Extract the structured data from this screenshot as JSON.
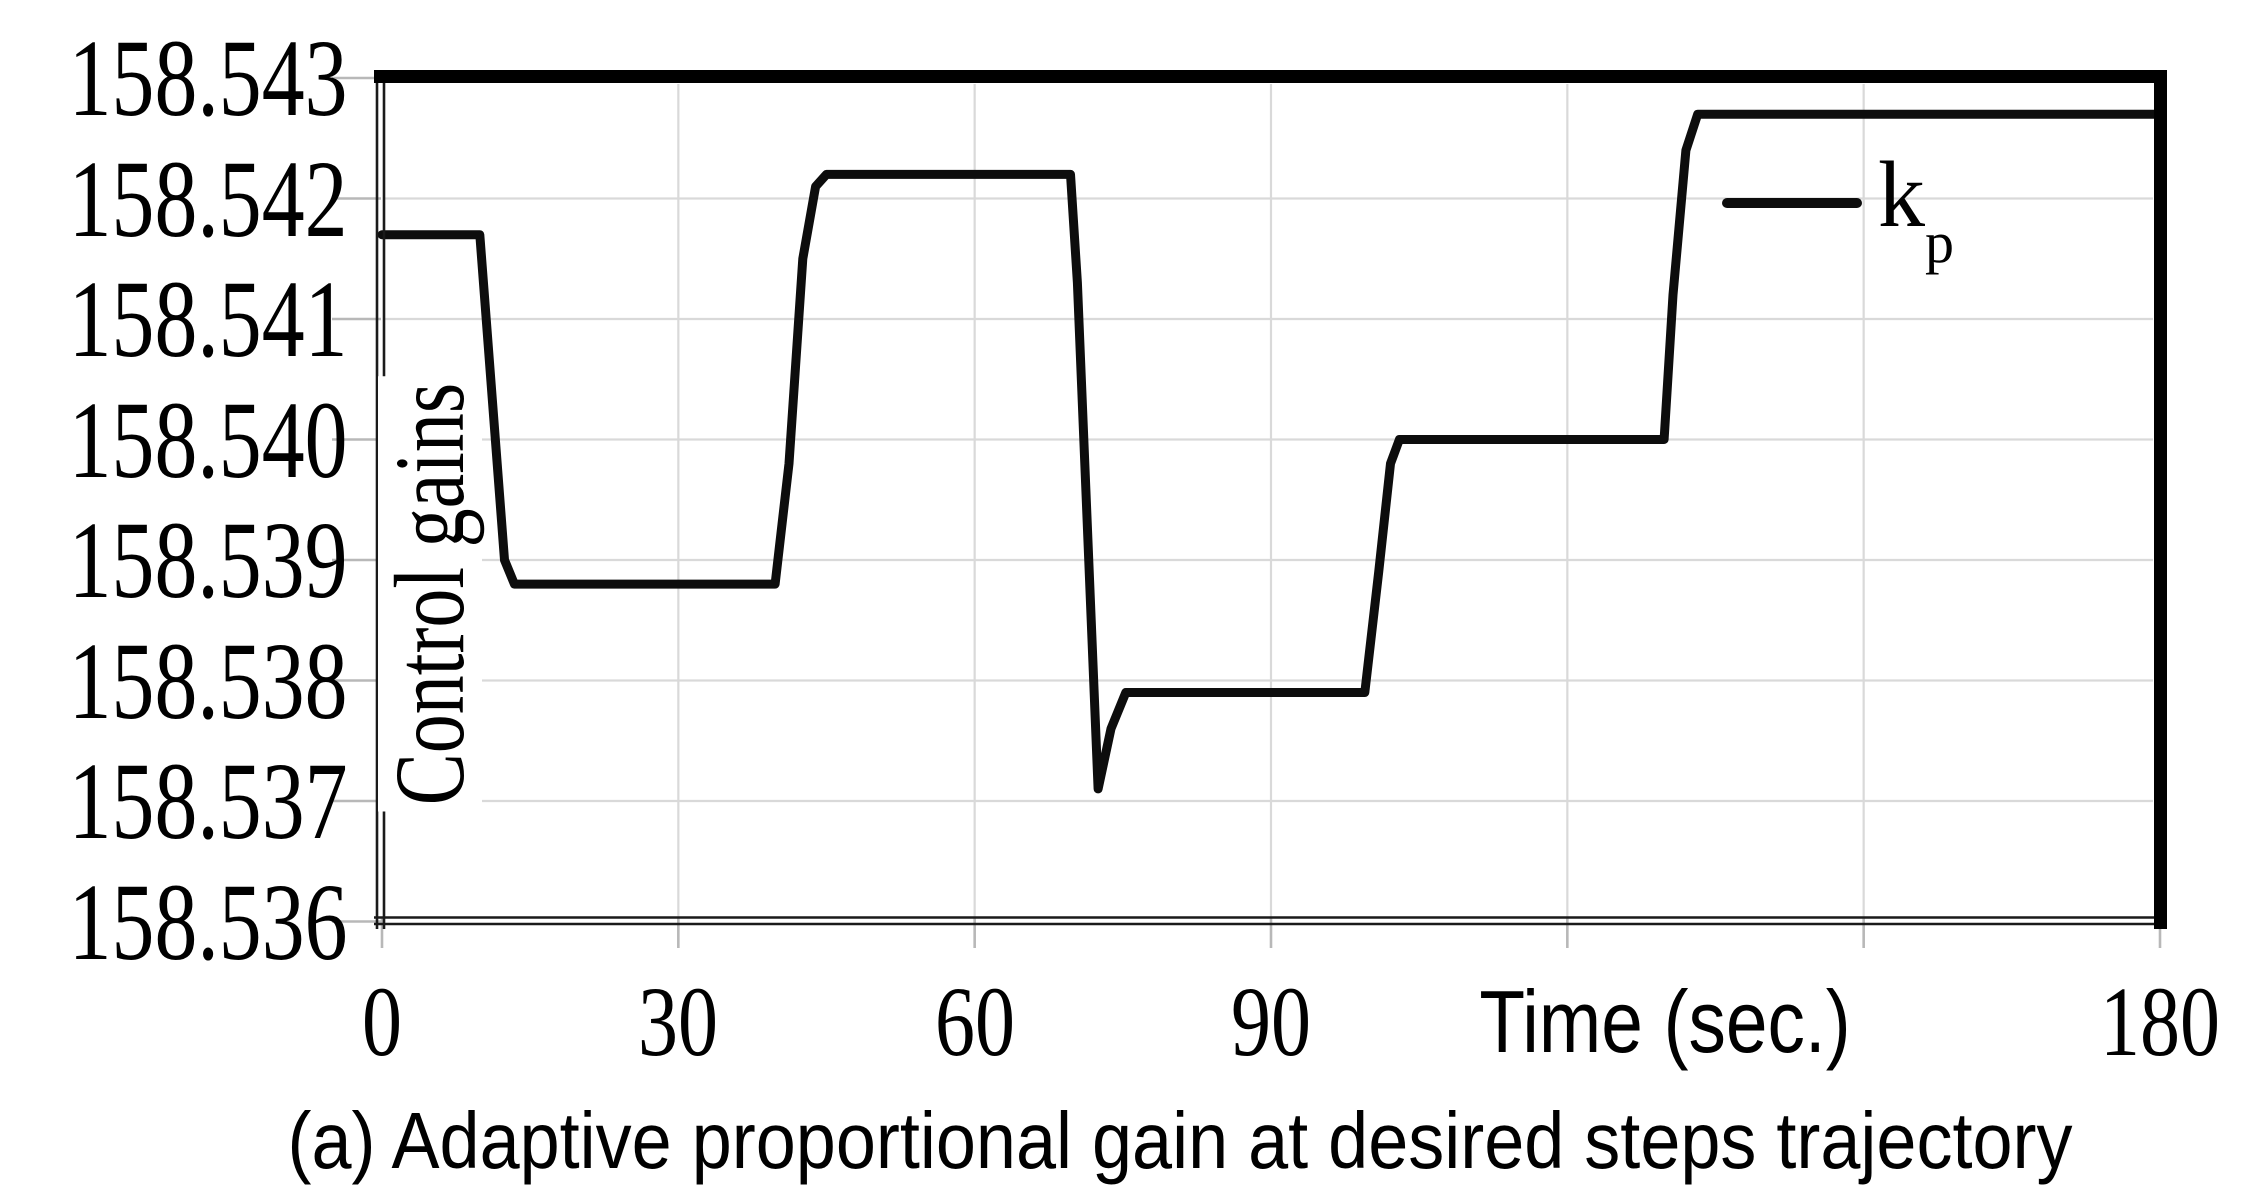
{
  "figure": {
    "caption": "(a) Adaptive proportional gain at desired steps trajectory"
  },
  "colors": {
    "series_line": "#0d0d0d",
    "gridline": "#d9d9d9",
    "tick": "#b8b8b8",
    "axis": "#1a1a1a",
    "border": "#000000",
    "text": "#000000",
    "background": "#ffffff"
  },
  "chart_data": {
    "type": "line",
    "title": "",
    "xlabel": "Time (sec.)",
    "ylabel": "Control gains",
    "xlim": [
      0,
      180
    ],
    "ylim": [
      158.536,
      158.543
    ],
    "grid": true,
    "x_axis": {
      "tick_values": [
        0,
        30,
        60,
        90,
        120,
        150,
        180
      ],
      "labeled_ticks": [
        {
          "value": 0,
          "text": "0"
        },
        {
          "value": 30,
          "text": "30"
        },
        {
          "value": 60,
          "text": "60"
        },
        {
          "value": 90,
          "text": "90"
        },
        {
          "value": 180,
          "text": "180"
        }
      ]
    },
    "y_axis": {
      "tick_values": [
        158.543,
        158.542,
        158.541,
        158.54,
        158.539,
        158.538,
        158.537,
        158.536
      ],
      "tick_labels": [
        "158.543",
        "158.542",
        "158.541",
        "158.540",
        "158.539",
        "158.538",
        "158.537",
        "158.536"
      ]
    },
    "legend": {
      "position": "top-right",
      "label": "k",
      "subscript": "p"
    },
    "series": [
      {
        "name": "kp",
        "points": [
          [
            0,
            158.5417
          ],
          [
            9.9,
            158.5417
          ],
          [
            12.4,
            158.539
          ],
          [
            13.4,
            158.5388
          ],
          [
            39.8,
            158.5388
          ],
          [
            41.2,
            158.5398
          ],
          [
            42.6,
            158.5415
          ],
          [
            43.9,
            158.5421
          ],
          [
            45.0,
            158.5422
          ],
          [
            69.7,
            158.5422
          ],
          [
            70.4,
            158.5413
          ],
          [
            72.5,
            158.5371
          ],
          [
            73.8,
            158.5376
          ],
          [
            75.3,
            158.5379
          ],
          [
            99.5,
            158.5379
          ],
          [
            100.9,
            158.5389
          ],
          [
            102.1,
            158.5398
          ],
          [
            103.0,
            158.54
          ],
          [
            129.8,
            158.54
          ],
          [
            130.7,
            158.5412
          ],
          [
            132.0,
            158.5424
          ],
          [
            133.2,
            158.5427
          ],
          [
            180,
            158.5427
          ]
        ]
      }
    ]
  }
}
